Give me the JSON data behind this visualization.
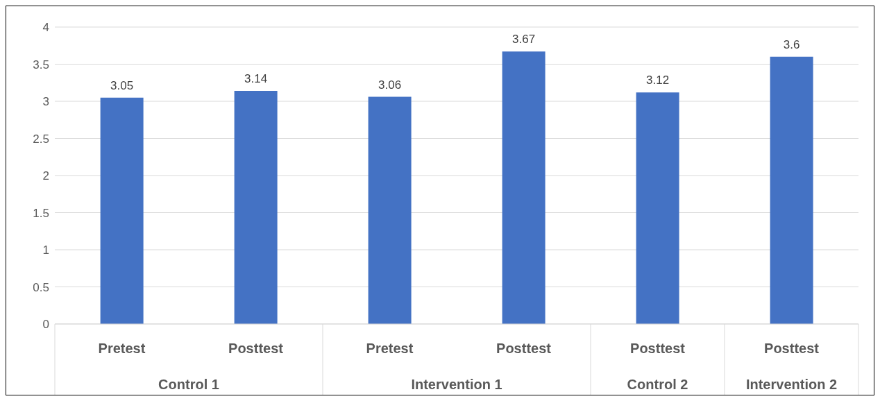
{
  "chart_data": {
    "type": "bar",
    "categories": [
      "Pretest",
      "Posttest",
      "Pretest",
      "Posttest",
      "Posttest",
      "Posttest"
    ],
    "values": [
      3.05,
      3.14,
      3.06,
      3.67,
      3.12,
      3.6
    ],
    "color": "#4472c4",
    "ylim": [
      0,
      4
    ],
    "yticks": [
      0,
      0.5,
      1,
      1.5,
      2,
      2.5,
      3,
      3.5,
      4
    ],
    "grid": "y",
    "data_labels": true,
    "annotations": [
      "Control 1",
      "Intervention 1",
      "Control 2",
      "Intervention 2"
    ]
  }
}
